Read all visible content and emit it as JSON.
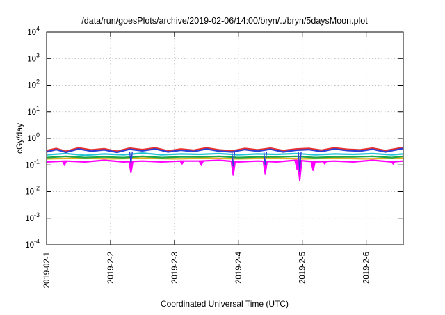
{
  "chart_data": {
    "type": "line",
    "title": "/data/run/goesPlots/archive/2019-02-06/14:00/bryn/../bryn/5daysMoon.plot",
    "xlabel": "Coordinated Universal Time (UTC)",
    "ylabel": "cGy/day",
    "yscale": "log",
    "ylim": [
      0.0001,
      10000
    ],
    "xlim_days": [
      0,
      5.58
    ],
    "grid": true,
    "yticks": [
      {
        "value": 0.0001,
        "base": "10",
        "exp": "-4"
      },
      {
        "value": 0.001,
        "base": "10",
        "exp": "-3"
      },
      {
        "value": 0.01,
        "base": "10",
        "exp": "-2"
      },
      {
        "value": 0.1,
        "base": "10",
        "exp": "-1"
      },
      {
        "value": 1,
        "base": "10",
        "exp": "0"
      },
      {
        "value": 10,
        "base": "10",
        "exp": "1"
      },
      {
        "value": 100,
        "base": "10",
        "exp": "2"
      },
      {
        "value": 1000,
        "base": "10",
        "exp": "3"
      },
      {
        "value": 10000,
        "base": "10",
        "exp": "4"
      }
    ],
    "xticks": [
      {
        "value": 0,
        "label": "2019-02-1"
      },
      {
        "value": 1,
        "label": "2019-2-2"
      },
      {
        "value": 2,
        "label": "2019-2-3"
      },
      {
        "value": 3,
        "label": "2019-2-4"
      },
      {
        "value": 4,
        "label": "2019-2-5"
      },
      {
        "value": 5,
        "label": "2019-2-6"
      }
    ],
    "series": [
      {
        "color": "#2b3fd6",
        "base": 0.32,
        "x": [
          0,
          0.15,
          0.3,
          0.5,
          0.7,
          0.9,
          1.1,
          1.3,
          1.5,
          1.7,
          1.9,
          2.1,
          2.3,
          2.5,
          2.7,
          2.9,
          3.1,
          3.3,
          3.5,
          3.7,
          3.9,
          4.1,
          4.3,
          4.5,
          4.7,
          4.9,
          5.1,
          5.3,
          5.58
        ],
        "y": [
          0.31,
          0.38,
          0.3,
          0.4,
          0.33,
          0.37,
          0.3,
          0.39,
          0.34,
          0.4,
          0.31,
          0.36,
          0.32,
          0.4,
          0.33,
          0.31,
          0.38,
          0.33,
          0.39,
          0.31,
          0.36,
          0.38,
          0.32,
          0.4,
          0.35,
          0.33,
          0.39,
          0.31,
          0.42
        ]
      },
      {
        "color": "#e8312e",
        "base": 0.36,
        "x": [
          0,
          0.15,
          0.3,
          0.5,
          0.7,
          0.9,
          1.1,
          1.3,
          1.5,
          1.7,
          1.9,
          2.1,
          2.3,
          2.5,
          2.7,
          2.9,
          3.1,
          3.3,
          3.5,
          3.7,
          3.9,
          4.1,
          4.3,
          4.5,
          4.7,
          4.9,
          5.1,
          5.3,
          5.58
        ],
        "y": [
          0.35,
          0.42,
          0.33,
          0.44,
          0.37,
          0.41,
          0.33,
          0.43,
          0.38,
          0.44,
          0.34,
          0.4,
          0.36,
          0.44,
          0.37,
          0.34,
          0.42,
          0.37,
          0.43,
          0.35,
          0.4,
          0.42,
          0.36,
          0.44,
          0.39,
          0.37,
          0.43,
          0.35,
          0.46
        ]
      },
      {
        "color": "#22c4d6",
        "base": 0.25,
        "x": [
          0,
          0.3,
          0.6,
          0.9,
          1.2,
          1.5,
          1.8,
          2.1,
          2.4,
          2.7,
          3.0,
          3.3,
          3.6,
          3.9,
          4.2,
          4.5,
          4.8,
          5.1,
          5.4,
          5.58
        ],
        "y": [
          0.24,
          0.27,
          0.23,
          0.26,
          0.24,
          0.28,
          0.24,
          0.26,
          0.25,
          0.27,
          0.24,
          0.26,
          0.25,
          0.27,
          0.24,
          0.26,
          0.25,
          0.27,
          0.24,
          0.26
        ]
      },
      {
        "color": "#1aa84a",
        "base": 0.2,
        "x": [
          0,
          0.3,
          0.6,
          0.9,
          1.2,
          1.5,
          1.8,
          2.1,
          2.4,
          2.7,
          3.0,
          3.3,
          3.6,
          3.9,
          4.2,
          4.5,
          4.8,
          5.1,
          5.4,
          5.58
        ],
        "y": [
          0.19,
          0.21,
          0.19,
          0.2,
          0.19,
          0.21,
          0.19,
          0.2,
          0.2,
          0.21,
          0.19,
          0.2,
          0.2,
          0.21,
          0.19,
          0.2,
          0.2,
          0.21,
          0.19,
          0.21
        ]
      },
      {
        "color": "#e6b020",
        "base": 0.17,
        "x": [
          0,
          0.5,
          1.0,
          1.5,
          2.0,
          2.5,
          3.0,
          3.5,
          4.0,
          4.5,
          5.0,
          5.58
        ],
        "y": [
          0.17,
          0.18,
          0.17,
          0.18,
          0.17,
          0.18,
          0.17,
          0.18,
          0.17,
          0.18,
          0.17,
          0.18
        ]
      },
      {
        "color": "#ff00ff",
        "base": 0.14,
        "x": [
          0,
          0.3,
          0.6,
          0.9,
          1.2,
          1.5,
          1.8,
          2.1,
          2.4,
          2.7,
          3.0,
          3.3,
          3.6,
          3.9,
          4.2,
          4.5,
          4.8,
          5.1,
          5.4,
          5.58
        ],
        "y": [
          0.13,
          0.14,
          0.13,
          0.15,
          0.13,
          0.14,
          0.13,
          0.14,
          0.14,
          0.15,
          0.13,
          0.14,
          0.13,
          0.15,
          0.13,
          0.14,
          0.13,
          0.15,
          0.13,
          0.14
        ]
      }
    ],
    "dips": [
      {
        "x": 0.28,
        "y": 0.1
      },
      {
        "x": 1.32,
        "y": 0.05
      },
      {
        "x": 2.12,
        "y": 0.11
      },
      {
        "x": 2.42,
        "y": 0.1
      },
      {
        "x": 2.92,
        "y": 0.04
      },
      {
        "x": 3.42,
        "y": 0.045
      },
      {
        "x": 3.92,
        "y": 0.065
      },
      {
        "x": 3.96,
        "y": 0.025
      },
      {
        "x": 4.17,
        "y": 0.06
      },
      {
        "x": 4.35,
        "y": 0.11
      },
      {
        "x": 5.42,
        "y": 0.11
      }
    ]
  }
}
